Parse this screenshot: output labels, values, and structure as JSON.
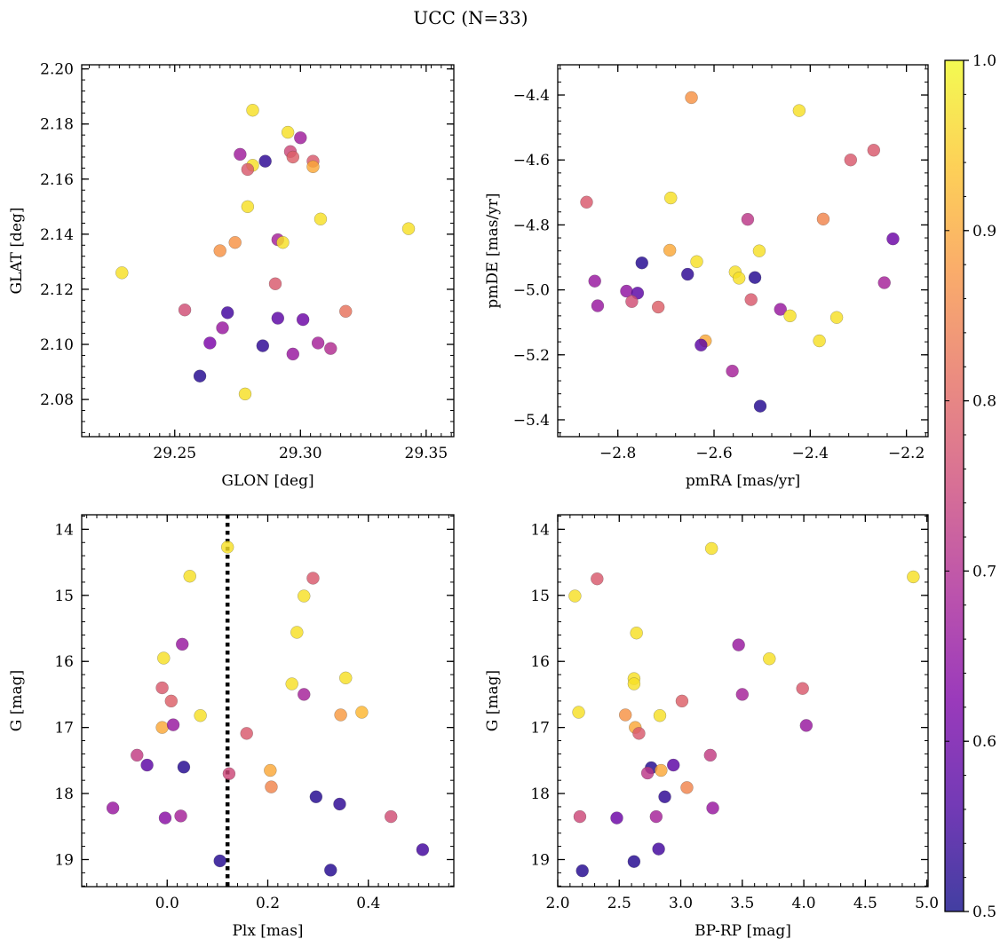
{
  "title": "UCC (N=33)",
  "colorbar": {
    "cmap": "plasma",
    "range": [
      0.5,
      1.0
    ],
    "ticks": [
      0.5,
      0.6,
      0.7,
      0.8,
      0.9,
      1.0
    ],
    "tick_labels": [
      "0.5",
      "0.6",
      "0.7",
      "0.8",
      "0.9",
      "1.0"
    ]
  },
  "chart_data": [
    {
      "type": "scatter",
      "xlabel": "GLON [deg]",
      "ylabel": "GLAT [deg]",
      "xlim": [
        29.213,
        29.361
      ],
      "ylim": [
        2.0665,
        2.2015
      ],
      "xticks": [
        29.25,
        29.3,
        29.35
      ],
      "xtick_labels": [
        "29.25",
        "29.30",
        "29.35"
      ],
      "yticks": [
        2.08,
        2.1,
        2.12,
        2.14,
        2.16,
        2.18,
        2.2
      ],
      "ytick_labels": [
        "2.08",
        "2.10",
        "2.12",
        "2.14",
        "2.16",
        "2.18",
        "2.20"
      ],
      "x": [
        29.281,
        29.295,
        29.3,
        29.276,
        29.286,
        29.296,
        29.297,
        29.281,
        29.279,
        29.305,
        29.305,
        29.279,
        29.308,
        29.343,
        29.274,
        29.268,
        29.291,
        29.293,
        29.229,
        29.29,
        29.254,
        29.318,
        29.271,
        29.291,
        29.301,
        29.269,
        29.264,
        29.285,
        29.307,
        29.312,
        29.297,
        29.26,
        29.278
      ],
      "y": [
        2.185,
        2.177,
        2.175,
        2.169,
        2.1665,
        2.17,
        2.168,
        2.165,
        2.1635,
        2.1665,
        2.1645,
        2.15,
        2.1455,
        2.142,
        2.137,
        2.134,
        2.138,
        2.137,
        2.126,
        2.122,
        2.1125,
        2.112,
        2.1115,
        2.1095,
        2.109,
        2.106,
        2.1005,
        2.0995,
        2.1005,
        2.0985,
        2.0965,
        2.0885,
        2.082
      ],
      "c": [
        0.97,
        0.97,
        0.67,
        0.67,
        0.53,
        0.75,
        0.79,
        0.97,
        0.78,
        0.78,
        0.9,
        0.97,
        0.97,
        0.97,
        0.87,
        0.87,
        0.68,
        0.97,
        0.97,
        0.78,
        0.76,
        0.82,
        0.55,
        0.58,
        0.6,
        0.66,
        0.62,
        0.53,
        0.68,
        0.7,
        0.66,
        0.52,
        0.97
      ]
    },
    {
      "type": "scatter",
      "xlabel": "pmRA [mas/yr]",
      "ylabel": "pmDE [mas/yr]",
      "xlim": [
        -2.925,
        -2.155
      ],
      "ylim": [
        -5.452,
        -4.307
      ],
      "xticks": [
        -2.8,
        -2.6,
        -2.4,
        -2.2
      ],
      "xtick_labels": [
        "−2.8",
        "−2.6",
        "−2.4",
        "−2.2"
      ],
      "yticks": [
        -5.4,
        -5.2,
        -5.0,
        -4.8,
        -4.6,
        -4.4
      ],
      "ytick_labels": [
        "−5.4",
        "−5.2",
        "−5.0",
        "−4.8",
        "−4.6",
        "−4.4"
      ],
      "x": [
        -2.647,
        -2.423,
        -2.268,
        -2.316,
        -2.865,
        -2.69,
        -2.53,
        -2.373,
        -2.228,
        -2.692,
        -2.636,
        -2.506,
        -2.75,
        -2.556,
        -2.548,
        -2.515,
        -2.655,
        -2.848,
        -2.782,
        -2.759,
        -2.246,
        -2.523,
        -2.771,
        -2.842,
        -2.716,
        -2.462,
        -2.442,
        -2.345,
        -2.618,
        -2.381,
        -2.627,
        -2.562,
        -2.504
      ],
      "y": [
        -4.408,
        -4.448,
        -4.57,
        -4.6,
        -4.73,
        -4.717,
        -4.783,
        -4.782,
        -4.843,
        -4.878,
        -4.913,
        -4.88,
        -4.917,
        -4.945,
        -4.964,
        -4.962,
        -4.952,
        -4.973,
        -5.004,
        -5.01,
        -4.978,
        -5.03,
        -5.036,
        -5.049,
        -5.053,
        -5.06,
        -5.08,
        -5.085,
        -5.157,
        -5.157,
        -5.17,
        -5.25,
        -5.358
      ],
      "c": [
        0.87,
        0.97,
        0.78,
        0.78,
        0.78,
        0.97,
        0.72,
        0.85,
        0.6,
        0.9,
        0.97,
        0.97,
        0.52,
        0.97,
        0.97,
        0.52,
        0.53,
        0.66,
        0.65,
        0.58,
        0.68,
        0.78,
        0.76,
        0.66,
        0.79,
        0.66,
        0.97,
        0.97,
        0.9,
        0.97,
        0.58,
        0.68,
        0.52
      ]
    },
    {
      "type": "scatter",
      "xlabel": "Plx [mas]",
      "ylabel": "G [mag]",
      "xlim": [
        -0.17,
        0.57
      ],
      "ylim": [
        19.41,
        13.78
      ],
      "y_inverted": true,
      "xticks": [
        0.0,
        0.2,
        0.4
      ],
      "xtick_labels": [
        "0.0",
        "0.2",
        "0.4"
      ],
      "yticks": [
        14,
        15,
        16,
        17,
        18,
        19
      ],
      "ytick_labels": [
        "14",
        "15",
        "16",
        "17",
        "18",
        "19"
      ],
      "vline": 0.12,
      "x": [
        0.12,
        0.045,
        0.29,
        0.272,
        0.258,
        -0.007,
        0.03,
        0.355,
        0.248,
        -0.01,
        0.272,
        0.008,
        0.066,
        0.387,
        0.345,
        -0.01,
        0.012,
        0.158,
        -0.06,
        -0.04,
        0.033,
        0.123,
        0.205,
        0.207,
        -0.108,
        0.343,
        0.296,
        0.027,
        -0.004,
        0.445,
        0.508,
        0.105,
        0.325
      ],
      "y": [
        14.27,
        14.71,
        14.74,
        15.01,
        15.56,
        15.95,
        15.74,
        16.25,
        16.34,
        16.4,
        16.5,
        16.6,
        16.82,
        16.77,
        16.81,
        17.0,
        16.96,
        17.09,
        17.42,
        17.57,
        17.6,
        17.7,
        17.65,
        17.9,
        18.22,
        18.16,
        18.05,
        18.34,
        18.37,
        18.35,
        18.85,
        19.02,
        19.16
      ],
      "c": [
        0.97,
        0.97,
        0.78,
        0.97,
        0.97,
        0.97,
        0.66,
        0.97,
        0.97,
        0.78,
        0.68,
        0.79,
        0.97,
        0.92,
        0.88,
        0.9,
        0.66,
        0.78,
        0.73,
        0.58,
        0.52,
        0.75,
        0.9,
        0.85,
        0.66,
        0.53,
        0.52,
        0.68,
        0.64,
        0.76,
        0.55,
        0.52,
        0.52
      ]
    },
    {
      "type": "scatter",
      "xlabel": "BP-RP [mag]",
      "ylabel": "G [mag]",
      "xlim": [
        2.0,
        5.01
      ],
      "ylim": [
        19.41,
        13.78
      ],
      "y_inverted": true,
      "xticks": [
        2.0,
        2.5,
        3.0,
        3.5,
        4.0,
        4.5,
        5.0
      ],
      "xtick_labels": [
        "2.0",
        "2.5",
        "3.0",
        "3.5",
        "4.0",
        "4.5",
        "5.0"
      ],
      "yticks": [
        14,
        15,
        16,
        17,
        18,
        19
      ],
      "ytick_labels": [
        "14",
        "15",
        "16",
        "17",
        "18",
        "19"
      ],
      "x": [
        3.25,
        4.89,
        2.32,
        2.14,
        2.64,
        3.47,
        3.72,
        2.62,
        2.62,
        3.99,
        3.5,
        3.01,
        2.55,
        2.83,
        2.17,
        2.63,
        4.02,
        2.66,
        3.24,
        2.94,
        2.76,
        2.73,
        2.84,
        3.05,
        3.26,
        2.87,
        2.18,
        2.8,
        2.48,
        2.82,
        2.62,
        2.2
      ],
      "y": [
        14.29,
        14.72,
        14.75,
        15.01,
        15.57,
        15.75,
        15.96,
        16.26,
        16.34,
        16.41,
        16.5,
        16.6,
        16.81,
        16.82,
        16.77,
        17.0,
        16.97,
        17.09,
        17.42,
        17.57,
        17.61,
        17.69,
        17.65,
        17.91,
        18.22,
        18.05,
        18.35,
        18.35,
        18.37,
        18.84,
        19.03,
        19.17
      ],
      "c": [
        0.97,
        0.97,
        0.78,
        0.97,
        0.97,
        0.66,
        0.97,
        0.97,
        0.97,
        0.78,
        0.68,
        0.79,
        0.87,
        0.97,
        0.97,
        0.9,
        0.66,
        0.78,
        0.73,
        0.58,
        0.52,
        0.72,
        0.9,
        0.85,
        0.66,
        0.53,
        0.75,
        0.68,
        0.6,
        0.55,
        0.52,
        0.52
      ]
    }
  ]
}
